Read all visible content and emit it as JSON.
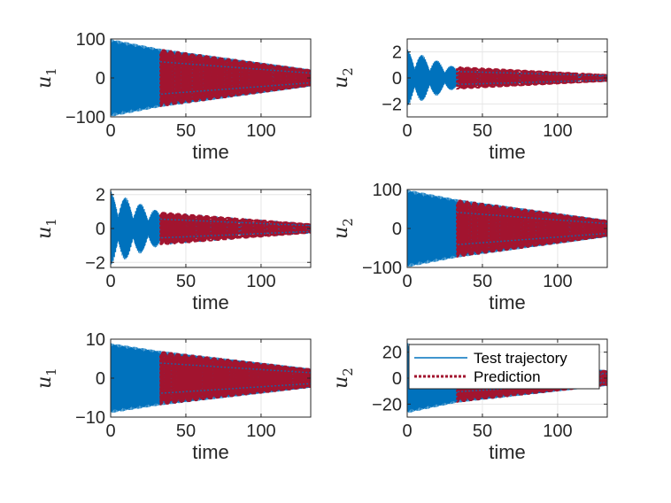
{
  "colors": {
    "test": "#0072BD",
    "prediction": "#A2142F",
    "axis": "#262626",
    "grid": "#e6e6e6"
  },
  "legend": {
    "entries": [
      "Test trajectory",
      "Prediction"
    ],
    "placement": "top-right of bottom-right panel"
  },
  "chart_data": [
    {
      "type": "line",
      "row": 1,
      "col": 1,
      "ylabel": "u",
      "ylabel_sub": "1",
      "xlabel": "time",
      "xlim": [
        0,
        133
      ],
      "ylim": [
        -100,
        100
      ],
      "xticks": [
        "0",
        "50",
        "100"
      ],
      "yticks": [
        "100",
        "0",
        "-100"
      ],
      "ytick_values": [
        100,
        0,
        -100
      ],
      "grid": true,
      "series": [
        {
          "role": "test",
          "x_range": [
            0,
            133
          ],
          "envelope": [
            [
              0,
              100
            ],
            [
              33,
              75
            ],
            [
              133,
              22
            ]
          ],
          "oscillation": "dense"
        },
        {
          "role": "prediction",
          "x_range": [
            33,
            133
          ],
          "envelope": [
            [
              33,
              75
            ],
            [
              133,
              22
            ]
          ],
          "oscillation": "dense"
        }
      ]
    },
    {
      "type": "line",
      "row": 1,
      "col": 2,
      "ylabel": "u",
      "ylabel_sub": "2",
      "xlabel": "time",
      "xlim": [
        0,
        133
      ],
      "ylim": [
        -3,
        3
      ],
      "xticks": [
        "0",
        "50",
        "100"
      ],
      "yticks": [
        "2",
        "0",
        "-2"
      ],
      "ytick_values": [
        2,
        0,
        -2
      ],
      "grid": true,
      "series": [
        {
          "role": "test",
          "x_range": [
            0,
            133
          ],
          "envelope": [
            [
              0,
              2.2
            ],
            [
              33,
              0.8
            ],
            [
              133,
              0.3
            ]
          ],
          "beat_period": 10,
          "oscillation": "dense"
        },
        {
          "role": "prediction",
          "x_range": [
            33,
            133
          ],
          "envelope": [
            [
              33,
              0.9
            ],
            [
              133,
              0.3
            ]
          ],
          "oscillation": "dense"
        }
      ]
    },
    {
      "type": "line",
      "row": 2,
      "col": 1,
      "ylabel": "u",
      "ylabel_sub": "1",
      "xlabel": "time",
      "xlim": [
        0,
        133
      ],
      "ylim": [
        -2.3,
        2.3
      ],
      "xticks": [
        "0",
        "50",
        "100"
      ],
      "yticks": [
        "2",
        "0",
        "-2"
      ],
      "ytick_values": [
        2,
        0,
        -2
      ],
      "grid": true,
      "series": [
        {
          "role": "test",
          "x_range": [
            0,
            133
          ],
          "envelope": [
            [
              0,
              2.2
            ],
            [
              33,
              1.0
            ],
            [
              133,
              0.3
            ]
          ],
          "beat_period": 10,
          "oscillation": "dense"
        },
        {
          "role": "prediction",
          "x_range": [
            33,
            133
          ],
          "envelope": [
            [
              33,
              1.0
            ],
            [
              133,
              0.3
            ]
          ],
          "oscillation": "dense"
        }
      ]
    },
    {
      "type": "line",
      "row": 2,
      "col": 2,
      "ylabel": "u",
      "ylabel_sub": "2",
      "xlabel": "time",
      "xlim": [
        0,
        133
      ],
      "ylim": [
        -100,
        100
      ],
      "xticks": [
        "0",
        "50",
        "100"
      ],
      "yticks": [
        "100",
        "0",
        "-100"
      ],
      "ytick_values": [
        100,
        0,
        -100
      ],
      "grid": true,
      "series": [
        {
          "role": "test",
          "x_range": [
            0,
            133
          ],
          "envelope": [
            [
              0,
              100
            ],
            [
              33,
              75
            ],
            [
              133,
              22
            ]
          ],
          "oscillation": "dense"
        },
        {
          "role": "prediction",
          "x_range": [
            33,
            133
          ],
          "envelope": [
            [
              33,
              75
            ],
            [
              133,
              22
            ]
          ],
          "oscillation": "dense"
        }
      ]
    },
    {
      "type": "line",
      "row": 3,
      "col": 1,
      "ylabel": "u",
      "ylabel_sub": "1",
      "xlabel": "time",
      "xlim": [
        0,
        133
      ],
      "ylim": [
        -10,
        10
      ],
      "xticks": [
        "0",
        "50",
        "100"
      ],
      "yticks": [
        "10",
        "0",
        "-10"
      ],
      "ytick_values": [
        10,
        0,
        -10
      ],
      "grid": true,
      "series": [
        {
          "role": "test",
          "x_range": [
            0,
            133
          ],
          "envelope": [
            [
              0,
              9
            ],
            [
              33,
              7
            ],
            [
              133,
              2.5
            ]
          ],
          "oscillation": "dense"
        },
        {
          "role": "prediction",
          "x_range": [
            33,
            133
          ],
          "envelope": [
            [
              33,
              7
            ],
            [
              133,
              2.5
            ]
          ],
          "oscillation": "dense"
        }
      ]
    },
    {
      "type": "line",
      "row": 3,
      "col": 2,
      "ylabel": "u",
      "ylabel_sub": "2",
      "xlabel": "time",
      "xlim": [
        0,
        133
      ],
      "ylim": [
        -30,
        30
      ],
      "xticks": [
        "0",
        "50",
        "100"
      ],
      "yticks": [
        "20",
        "0",
        "-20"
      ],
      "ytick_values": [
        20,
        0,
        -20
      ],
      "grid": true,
      "has_legend": true,
      "series": [
        {
          "role": "test",
          "x_range": [
            0,
            133
          ],
          "envelope": [
            [
              0,
              27
            ],
            [
              33,
              19
            ],
            [
              133,
              6
            ]
          ],
          "oscillation": "dense"
        },
        {
          "role": "prediction",
          "x_range": [
            33,
            133
          ],
          "envelope": [
            [
              33,
              19
            ],
            [
              133,
              6
            ]
          ],
          "oscillation": "dense"
        }
      ]
    }
  ]
}
